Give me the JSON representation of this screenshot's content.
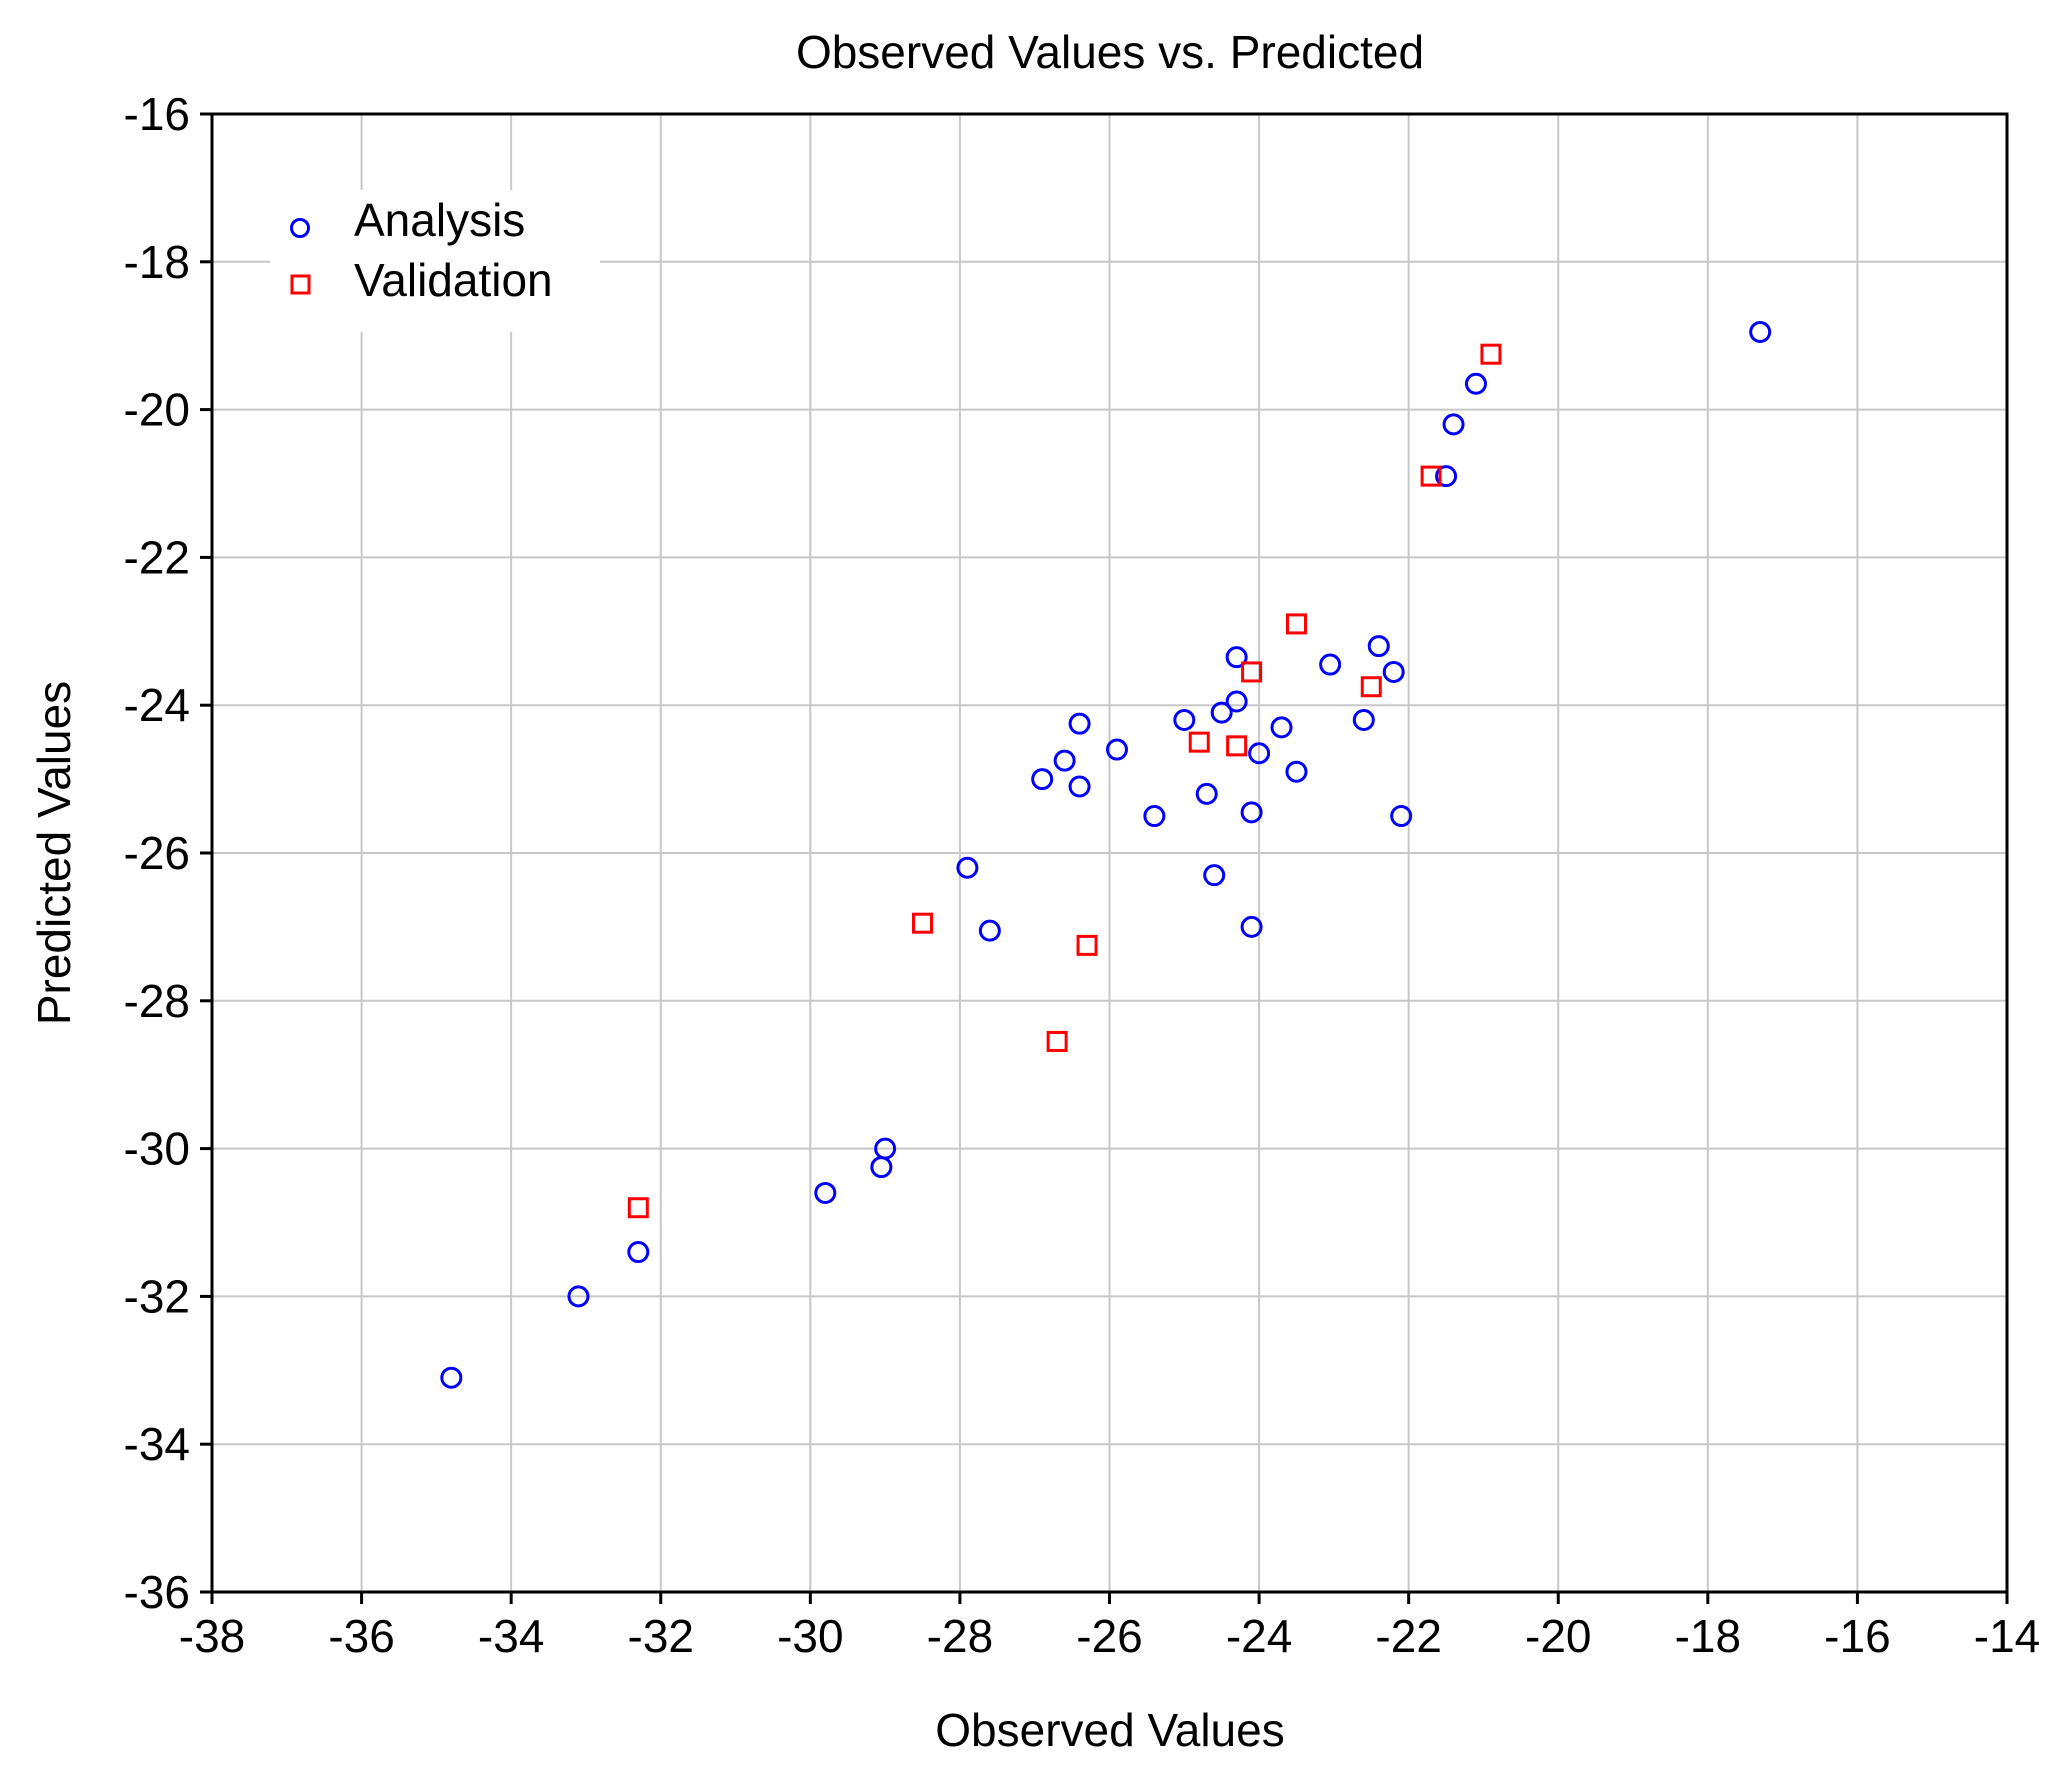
{
  "chart_data": {
    "type": "scatter",
    "title": "Observed Values vs. Predicted",
    "xlabel": "Observed Values",
    "ylabel": "Predicted Values",
    "xlim": [
      -38,
      -14
    ],
    "ylim": [
      -36,
      -16
    ],
    "xticks": [
      -38,
      -36,
      -34,
      -32,
      -30,
      -28,
      -26,
      -24,
      -22,
      -20,
      -18,
      -16,
      -14
    ],
    "yticks": [
      -16,
      -18,
      -20,
      -22,
      -24,
      -26,
      -28,
      -30,
      -32,
      -34,
      -36
    ],
    "grid": true,
    "legend_position": "top-left",
    "series": [
      {
        "name": "Analysis",
        "marker": "circle",
        "color": "#0000ff",
        "points": [
          [
            -34.8,
            -33.1
          ],
          [
            -33.1,
            -32.0
          ],
          [
            -32.3,
            -31.4
          ],
          [
            -29.8,
            -30.6
          ],
          [
            -29.05,
            -30.25
          ],
          [
            -29.0,
            -30.0
          ],
          [
            -27.9,
            -26.2
          ],
          [
            -27.6,
            -27.05
          ],
          [
            -26.9,
            -25.0
          ],
          [
            -26.6,
            -24.75
          ],
          [
            -26.4,
            -24.25
          ],
          [
            -26.4,
            -25.1
          ],
          [
            -25.9,
            -24.6
          ],
          [
            -25.4,
            -25.5
          ],
          [
            -25.0,
            -24.2
          ],
          [
            -24.7,
            -25.2
          ],
          [
            -24.6,
            -26.3
          ],
          [
            -24.5,
            -24.1
          ],
          [
            -24.3,
            -23.35
          ],
          [
            -24.3,
            -23.95
          ],
          [
            -24.1,
            -25.45
          ],
          [
            -24.1,
            -27.0
          ],
          [
            -24.0,
            -24.65
          ],
          [
            -23.7,
            -24.3
          ],
          [
            -23.5,
            -24.9
          ],
          [
            -23.05,
            -23.45
          ],
          [
            -22.6,
            -24.2
          ],
          [
            -22.4,
            -23.2
          ],
          [
            -22.2,
            -23.55
          ],
          [
            -22.1,
            -25.5
          ],
          [
            -21.5,
            -20.9
          ],
          [
            -21.4,
            -20.2
          ],
          [
            -21.1,
            -19.65
          ],
          [
            -17.3,
            -18.95
          ]
        ]
      },
      {
        "name": "Validation",
        "marker": "square",
        "color": "#ff0000",
        "points": [
          [
            -32.3,
            -30.8
          ],
          [
            -28.5,
            -26.95
          ],
          [
            -26.7,
            -28.55
          ],
          [
            -26.3,
            -27.25
          ],
          [
            -24.8,
            -24.5
          ],
          [
            -24.3,
            -24.55
          ],
          [
            -24.1,
            -23.55
          ],
          [
            -23.5,
            -22.9
          ],
          [
            -22.5,
            -23.75
          ],
          [
            -21.7,
            -20.9
          ],
          [
            -20.9,
            -19.25
          ]
        ]
      }
    ]
  }
}
